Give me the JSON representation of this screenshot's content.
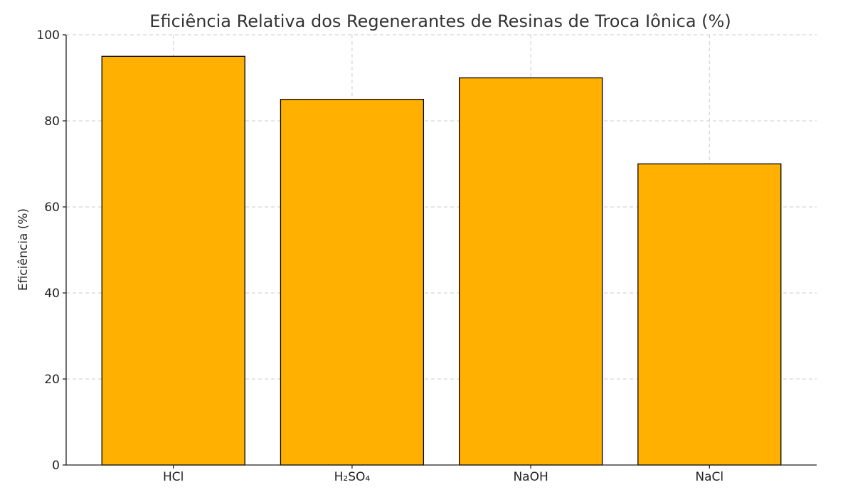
{
  "chart_data": {
    "type": "bar",
    "title": "Eficiência Relativa dos Regenerantes de Resinas de Troca Iônica (%)",
    "xlabel": "",
    "ylabel": "Eficiência (%)",
    "categories": [
      "HCl",
      "H₂SO₄",
      "NaOH",
      "NaCl"
    ],
    "values": [
      95,
      85,
      90,
      70
    ],
    "ylim": [
      0,
      100
    ],
    "yticks": [
      0,
      20,
      40,
      60,
      80,
      100
    ],
    "grid": true,
    "bar_color": "#FFB000",
    "bar_edge_color": "#000000"
  }
}
